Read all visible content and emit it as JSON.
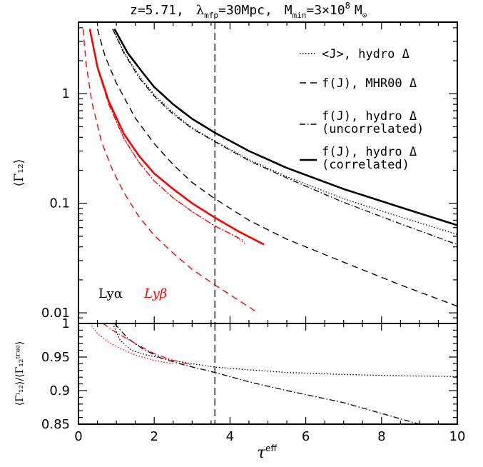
{
  "title": {
    "z": "z=5.71,",
    "lambda_sym": "λ",
    "lambda_sub": "mfp",
    "lambda_val": "=30Mpc,",
    "m_sym": "M",
    "m_sub": "min",
    "m_val": "=3×10",
    "m_exp": "8",
    "m_unit": "M",
    "m_unit_sub": "⊙"
  },
  "colors": {
    "lya": "#000000",
    "lyb": "#ff0000"
  },
  "panel_labels": {
    "lya": "Lyα",
    "lyb": "Lyβ"
  },
  "legend": [
    {
      "key": "dotted",
      "line1": "<J>, hydro Δ",
      "line2": ""
    },
    {
      "key": "dashed",
      "line1": "f(J), MHR00 Δ",
      "line2": ""
    },
    {
      "key": "dashdot",
      "line1": "f(J), hydro Δ",
      "line2": "(uncorrelated)"
    },
    {
      "key": "solid",
      "line1": "f(J), hydro Δ",
      "line2": "(correlated)"
    }
  ],
  "axes": {
    "xlabel": "τ",
    "xlabel_sup": "eff",
    "ylabel_top": "⟨Γ₁₂⟩",
    "ylabel_bottom": "⟨Γⁱ₁₂⟩/⟨Γ₁₂ᵗʳᵘᵉ⟩",
    "x_ticks": [
      "0",
      "2",
      "4",
      "6",
      "8",
      "10"
    ],
    "top_y_ticks": [
      "1",
      "0.1",
      "0.01"
    ],
    "bottom_y_ticks": [
      "1",
      "0.95",
      "0.9",
      "0.85"
    ]
  },
  "chart_data": [
    {
      "type": "line",
      "panel": "top",
      "xlim": [
        0,
        10
      ],
      "ylim": [
        0.008,
        4.5
      ],
      "yscale": "log",
      "vline_x": 3.6,
      "series": [
        {
          "name": "<J>, hydro Δ",
          "group": "Lyα",
          "style": "dotted",
          "x": [
            0.9,
            1.2,
            1.6,
            2.0,
            2.5,
            3.0,
            3.6,
            4.5,
            5.5,
            7.0,
            8.5,
            10.0
          ],
          "y": [
            3.9,
            2.4,
            1.45,
            0.98,
            0.67,
            0.49,
            0.37,
            0.25,
            0.175,
            0.11,
            0.075,
            0.052
          ]
        },
        {
          "name": "f(J), MHR00 Δ",
          "group": "Lyα",
          "style": "dashed",
          "x": [
            0.5,
            0.7,
            1.0,
            1.5,
            2.0,
            2.5,
            3.0,
            3.6,
            4.5,
            5.5,
            7.0,
            8.5,
            10.0
          ],
          "y": [
            3.9,
            2.2,
            1.25,
            0.6,
            0.35,
            0.225,
            0.155,
            0.11,
            0.07,
            0.047,
            0.029,
            0.018,
            0.0115
          ]
        },
        {
          "name": "f(J), hydro Δ (uncorrelated)",
          "group": "Lyα",
          "style": "dashdot",
          "x": [
            0.9,
            1.2,
            1.6,
            2.0,
            2.5,
            3.0,
            3.6,
            4.5,
            5.5,
            7.0,
            8.5,
            10.0
          ],
          "y": [
            3.9,
            2.35,
            1.4,
            0.95,
            0.65,
            0.48,
            0.365,
            0.245,
            0.17,
            0.102,
            0.065,
            0.042
          ]
        },
        {
          "name": "f(J), hydro Δ (correlated)",
          "group": "Lyα",
          "style": "solid",
          "x": [
            0.95,
            1.3,
            1.7,
            2.0,
            2.5,
            3.0,
            3.6,
            4.5,
            5.5,
            7.0,
            8.5,
            10.0
          ],
          "y": [
            3.9,
            2.35,
            1.55,
            1.15,
            0.8,
            0.59,
            0.44,
            0.3,
            0.21,
            0.135,
            0.092,
            0.063
          ]
        },
        {
          "name": "<J>, hydro Δ",
          "group": "Lyβ",
          "style": "dotted",
          "x": [
            0.3,
            0.5,
            0.8,
            1.2,
            1.6,
            2.0,
            2.5,
            3.0,
            3.6,
            4.0,
            4.4
          ],
          "y": [
            3.9,
            1.7,
            0.8,
            0.39,
            0.235,
            0.16,
            0.112,
            0.084,
            0.062,
            0.053,
            0.043
          ]
        },
        {
          "name": "f(J), MHR00 Δ",
          "group": "Lyβ",
          "style": "dashed",
          "x": [
            0.12,
            0.2,
            0.35,
            0.6,
            0.9,
            1.2,
            1.6,
            2.0,
            2.5,
            3.0,
            3.6,
            4.2,
            4.7
          ],
          "y": [
            3.9,
            1.9,
            0.85,
            0.37,
            0.2,
            0.125,
            0.075,
            0.051,
            0.035,
            0.025,
            0.018,
            0.0132,
            0.0102
          ]
        },
        {
          "name": "f(J), hydro Δ (uncorrelated)",
          "group": "Lyβ",
          "style": "dashdot",
          "x": [
            0.3,
            0.5,
            0.8,
            1.2,
            1.6,
            2.0,
            2.5,
            3.0,
            3.6,
            4.0,
            4.4
          ],
          "y": [
            3.9,
            1.7,
            0.8,
            0.39,
            0.235,
            0.16,
            0.112,
            0.084,
            0.062,
            0.053,
            0.045
          ]
        },
        {
          "name": "f(J), hydro Δ (correlated)",
          "group": "Lyβ",
          "style": "solid",
          "x": [
            0.3,
            0.5,
            0.8,
            1.2,
            1.6,
            2.0,
            2.5,
            3.0,
            3.6,
            4.2,
            4.9
          ],
          "y": [
            3.9,
            1.75,
            0.85,
            0.43,
            0.27,
            0.187,
            0.135,
            0.1,
            0.074,
            0.056,
            0.042
          ]
        }
      ]
    },
    {
      "type": "line",
      "panel": "bottom",
      "xlim": [
        0,
        10
      ],
      "ylim": [
        0.85,
        1.0
      ],
      "vline_x": 3.6,
      "series": [
        {
          "name": "<J>, hydro Δ",
          "group": "Lyα",
          "style": "dotted",
          "x": [
            0.9,
            1.1,
            1.4,
            1.8,
            2.5,
            3.0,
            3.6,
            4.5,
            5.5,
            7.0,
            8.5,
            10.0
          ],
          "y": [
            1.0,
            0.975,
            0.96,
            0.953,
            0.945,
            0.94,
            0.935,
            0.931,
            0.927,
            0.924,
            0.922,
            0.921
          ]
        },
        {
          "name": "f(J), hydro Δ (uncorrelated)",
          "group": "Lyα",
          "style": "dashdot",
          "x": [
            0.95,
            1.3,
            1.7,
            2.2,
            2.8,
            3.6,
            4.5,
            5.5,
            7.0,
            8.0,
            9.0
          ],
          "y": [
            1.0,
            0.978,
            0.962,
            0.948,
            0.938,
            0.927,
            0.913,
            0.9,
            0.882,
            0.866,
            0.85
          ]
        },
        {
          "name": "<J>, hydro Δ",
          "group": "Lyβ",
          "style": "dotted",
          "x": [
            0.3,
            0.5,
            0.8,
            1.1,
            1.5,
            2.0,
            2.5
          ],
          "y": [
            1.0,
            0.985,
            0.972,
            0.963,
            0.953,
            0.945,
            0.94
          ]
        },
        {
          "name": "f(J), hydro Δ (uncorrelated)",
          "group": "Lyβ",
          "style": "dashdot",
          "x": [
            0.65,
            0.9,
            1.2,
            1.6,
            2.0,
            2.5,
            3.0
          ],
          "y": [
            1.0,
            0.99,
            0.98,
            0.967,
            0.955,
            0.945,
            0.938
          ]
        }
      ]
    }
  ]
}
